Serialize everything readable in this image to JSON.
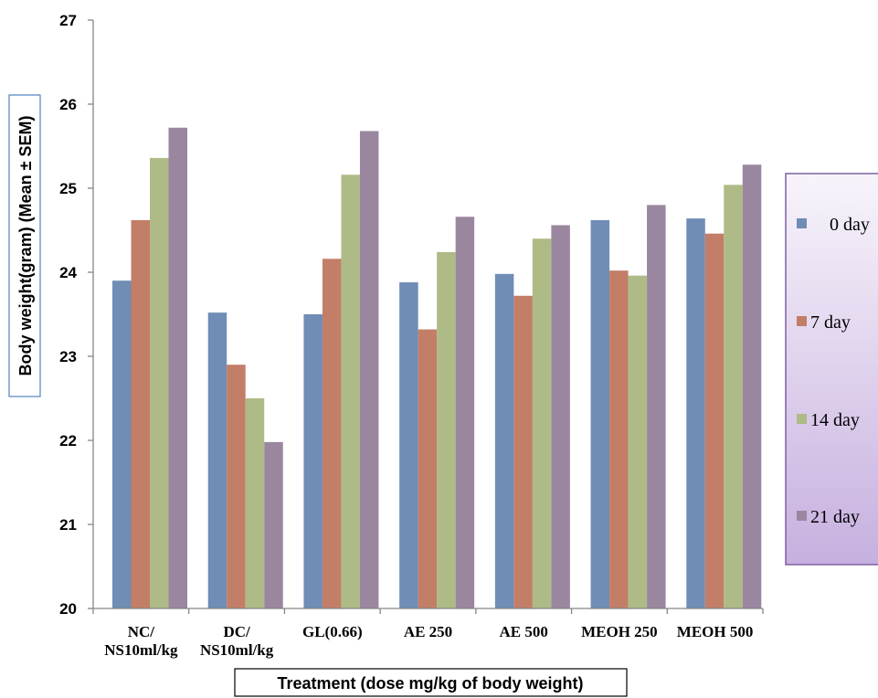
{
  "chart_data": {
    "type": "bar",
    "categories": [
      [
        "NC/",
        "NS10ml/kg"
      ],
      [
        "DC/",
        "NS10ml/kg"
      ],
      [
        "GL(0.66)"
      ],
      [
        "AE 250"
      ],
      [
        "AE 500"
      ],
      [
        "MEOH 250"
      ],
      [
        "MEOH 500"
      ]
    ],
    "series": [
      {
        "name": "0 day",
        "color": "#6f8db5",
        "values": [
          23.9,
          23.52,
          23.5,
          23.88,
          23.98,
          24.62,
          24.64
        ]
      },
      {
        "name": "7 day",
        "color": "#c37e68",
        "values": [
          24.62,
          22.9,
          24.16,
          23.32,
          23.72,
          24.02,
          24.46
        ]
      },
      {
        "name": "14 day",
        "color": "#aebb86",
        "values": [
          25.36,
          22.5,
          25.16,
          24.24,
          24.4,
          23.96,
          25.04
        ]
      },
      {
        "name": "21 day",
        "color": "#9a879f",
        "values": [
          25.72,
          21.98,
          25.68,
          24.66,
          24.56,
          24.8,
          25.28
        ]
      }
    ],
    "xlabel": "Treatment (dose mg/kg of body weight)",
    "ylabel": "Body weight(gram) (Mean ± SEM)",
    "ylim": [
      20,
      27
    ],
    "yticks": [
      "20",
      "21",
      "22",
      "23",
      "24",
      "25",
      "26",
      "27"
    ],
    "legend_position": "right",
    "grid": false
  }
}
